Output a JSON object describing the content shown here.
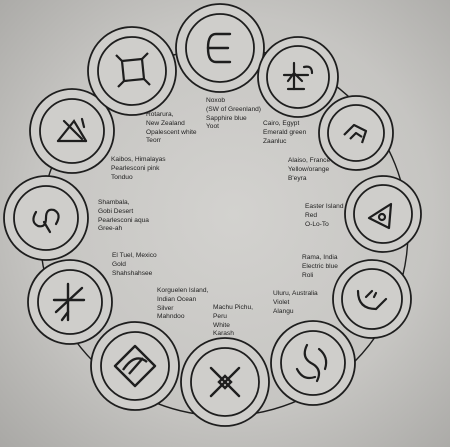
{
  "symbols": [
    {
      "icon": "wavy-e-icon"
    },
    {
      "icon": "arrow-cross-icon"
    },
    {
      "icon": "chevron-icon"
    },
    {
      "icon": "triangle-eye-icon"
    },
    {
      "icon": "crescent-face-icon"
    },
    {
      "icon": "yin-spiral-icon"
    },
    {
      "icon": "cross-x-icon"
    },
    {
      "icon": "diamond-eye-icon"
    },
    {
      "icon": "cross-hatch-icon"
    },
    {
      "icon": "spiral-scroll-icon"
    },
    {
      "icon": "triangle-cross-icon"
    },
    {
      "icon": "square-corners-icon"
    }
  ],
  "labels": [
    {
      "lines": [
        "Noxob",
        "(SW of Greenland)",
        "Sapphire blue",
        "Yoot"
      ]
    },
    {
      "lines": [
        "Cairo, Egypt",
        "Emerald green",
        "Zaanluc"
      ]
    },
    {
      "lines": [
        "Alaiso, France",
        "Yellow/orange",
        "B'eyra"
      ]
    },
    {
      "lines": [
        "Easter Island",
        "Red",
        "O-Lo-To"
      ]
    },
    {
      "lines": [
        "Rama, India",
        "Electric blue",
        "Roli"
      ]
    },
    {
      "lines": [
        "Uluru, Australia",
        "Violet",
        "Alangu"
      ]
    },
    {
      "lines": [
        "Machu Pichu,",
        "Peru",
        "White",
        "Karash"
      ]
    },
    {
      "lines": [
        "Korguelen Island,",
        "Indian Ocean",
        "Silver",
        "Mahndoo"
      ]
    },
    {
      "lines": [
        "El Tuel, Mexico",
        "Gold",
        "Shahshahsee"
      ]
    },
    {
      "lines": [
        "Shambala,",
        "Gobi Desert",
        "Pearlesconi aqua",
        "Gree-ah"
      ]
    },
    {
      "lines": [
        "Kaibos, Himalayas",
        "Pearlesconi pink",
        "Tonduo"
      ]
    },
    {
      "lines": [
        "Rotarura,",
        "New Zealand",
        "Opalescent white",
        "Teorr"
      ]
    }
  ]
}
